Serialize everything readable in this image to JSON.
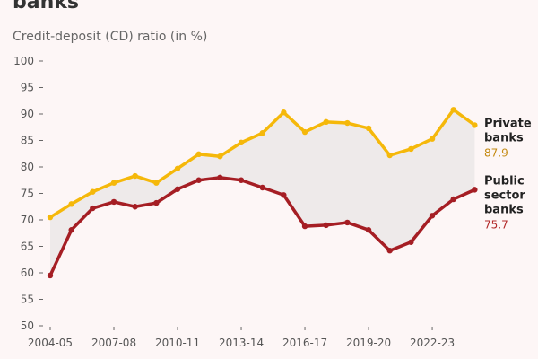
{
  "chart_data": {
    "type": "line",
    "title": "banks",
    "ylabel": "Credit-deposit (CD) ratio (in %)",
    "ylim": [
      50,
      100
    ],
    "yticks": [
      50,
      55,
      60,
      65,
      70,
      75,
      80,
      85,
      90,
      95,
      100
    ],
    "x": [
      "2004-05",
      "2005-06",
      "2006-07",
      "2007-08",
      "2008-09",
      "2009-10",
      "2010-11",
      "2011-12",
      "2012-13",
      "2013-14",
      "2014-15",
      "2015-16",
      "2016-17",
      "2017-18",
      "2018-19",
      "2019-20",
      "2020-21",
      "2021-22",
      "2022-23",
      "2023-24",
      "2024-25"
    ],
    "xtick_labels": [
      "2004-05",
      "2007-08",
      "2010-11",
      "2013-14",
      "2016-17",
      "2019-20",
      "2022-23"
    ],
    "grid": false,
    "shaded_area_between_series": true,
    "series": [
      {
        "name": "Private banks",
        "name_lines": [
          "Private",
          "banks"
        ],
        "end_label": "87.9",
        "color": "#f5b80a",
        "label_color": "#c48a12",
        "values": [
          70.5,
          73.0,
          75.3,
          77.0,
          78.3,
          77.0,
          79.7,
          82.4,
          82.0,
          84.6,
          86.4,
          90.3,
          86.6,
          88.5,
          88.3,
          87.3,
          82.2,
          83.4,
          85.3,
          90.8,
          87.9
        ]
      },
      {
        "name": "Public sector banks",
        "name_lines": [
          "Public",
          "sector",
          "banks"
        ],
        "end_label": "75.7",
        "color": "#a51e24",
        "label_color": "#b22a2a",
        "values": [
          59.5,
          68.1,
          72.2,
          73.4,
          72.5,
          73.2,
          75.8,
          77.5,
          78.0,
          77.5,
          76.1,
          74.7,
          68.8,
          69.0,
          69.5,
          68.1,
          64.2,
          65.8,
          70.8,
          73.9,
          75.7
        ]
      }
    ],
    "fill_color": "#eeeaea"
  }
}
